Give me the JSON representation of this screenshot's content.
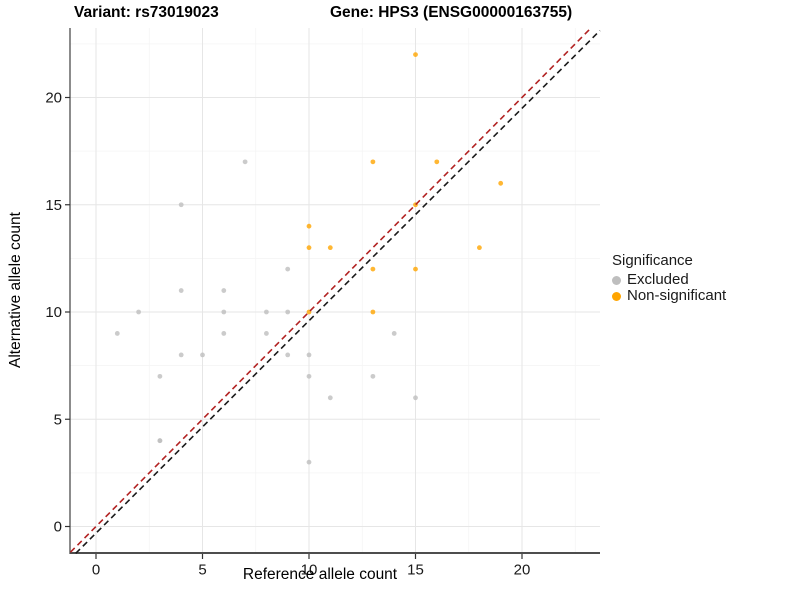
{
  "titles": {
    "left": "Variant: rs73019023",
    "right": "Gene: HPS3 (ENSG00000163755)"
  },
  "chart_data": {
    "type": "scatter",
    "xlabel": "Reference allele count",
    "ylabel": "Alternative allele count",
    "xticks": [
      0,
      5,
      10,
      15,
      20
    ],
    "yticks": [
      0,
      5,
      10,
      15,
      20
    ],
    "xlim": [
      -1.2,
      24.1
    ],
    "ylim": [
      -1.25,
      23.25
    ],
    "grid": true,
    "colors": {
      "excluded": "#BEBEBE",
      "non_significant": "#FFA500",
      "identity_line": "#B22222",
      "secondary_line": "#1A1A1A",
      "axis": "#4D4D4D",
      "grid_major": "#E6E6E6",
      "grid_minor": "#F4F4F4"
    },
    "legend": {
      "title": "Significance",
      "position": "right"
    },
    "series": [
      {
        "name": "Excluded",
        "color": "#BEBEBE",
        "points": [
          [
            1,
            9
          ],
          [
            2,
            10
          ],
          [
            3,
            4
          ],
          [
            3,
            4
          ],
          [
            3,
            7
          ],
          [
            4,
            8
          ],
          [
            4,
            11
          ],
          [
            4,
            15
          ],
          [
            5,
            8
          ],
          [
            6,
            9
          ],
          [
            6,
            10
          ],
          [
            6,
            11
          ],
          [
            7,
            17
          ],
          [
            8,
            9
          ],
          [
            8,
            10
          ],
          [
            9,
            8
          ],
          [
            9,
            10
          ],
          [
            9,
            12
          ],
          [
            10,
            3
          ],
          [
            10,
            7
          ],
          [
            10,
            8
          ],
          [
            11,
            6
          ],
          [
            13,
            7
          ],
          [
            14,
            9
          ],
          [
            15,
            6
          ]
        ]
      },
      {
        "name": "Non-significant",
        "color": "#FFA500",
        "points": [
          [
            10,
            10
          ],
          [
            10,
            13
          ],
          [
            10,
            14
          ],
          [
            11,
            13
          ],
          [
            13,
            10
          ],
          [
            13,
            12
          ],
          [
            13,
            17
          ],
          [
            15,
            12
          ],
          [
            15,
            15
          ],
          [
            15,
            22
          ],
          [
            16,
            17
          ],
          [
            18,
            13
          ],
          [
            19,
            16
          ]
        ]
      }
    ],
    "reference_lines": [
      {
        "name": "secondary-line-black",
        "color": "#1A1A1A",
        "dash": true,
        "x1": -0.95,
        "y1": -1.25,
        "x2": 23.66,
        "y2": 23.12
      },
      {
        "name": "identity-line-red",
        "color": "#B22222",
        "dash": true,
        "x1": -1.2,
        "y1": -1.2,
        "x2": 23.25,
        "y2": 23.25
      }
    ]
  }
}
